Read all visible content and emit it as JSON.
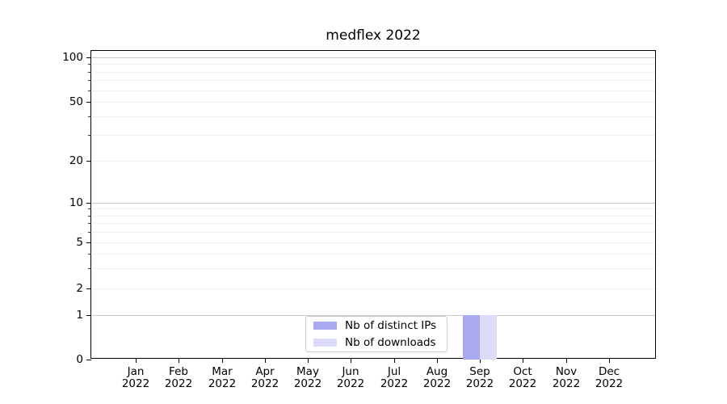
{
  "chart_data": {
    "type": "bar",
    "title": "medflex 2022",
    "x_ticks": [
      {
        "month": "Jan",
        "year": "2022"
      },
      {
        "month": "Feb",
        "year": "2022"
      },
      {
        "month": "Mar",
        "year": "2022"
      },
      {
        "month": "Apr",
        "year": "2022"
      },
      {
        "month": "May",
        "year": "2022"
      },
      {
        "month": "Jun",
        "year": "2022"
      },
      {
        "month": "Jul",
        "year": "2022"
      },
      {
        "month": "Aug",
        "year": "2022"
      },
      {
        "month": "Sep",
        "year": "2022"
      },
      {
        "month": "Oct",
        "year": "2022"
      },
      {
        "month": "Nov",
        "year": "2022"
      },
      {
        "month": "Dec",
        "year": "2022"
      }
    ],
    "series": [
      {
        "name": "Nb of distinct IPs",
        "color": "#a9a9f2",
        "values": [
          0,
          0,
          0,
          0,
          0,
          0,
          0,
          0,
          1,
          0,
          0,
          0
        ]
      },
      {
        "name": "Nb of downloads",
        "color": "#dcdcf8",
        "values": [
          0,
          0,
          0,
          0,
          0,
          0,
          0,
          0,
          1,
          0,
          0,
          0
        ]
      }
    ],
    "y_axis": {
      "scale": "symlog",
      "tick_values": [
        0,
        1,
        2,
        5,
        10,
        20,
        50,
        100
      ],
      "tick_labels": [
        "0",
        "1",
        "2",
        "5",
        "10",
        "20",
        "50",
        "100"
      ],
      "minor_tick_values": [
        3,
        4,
        6,
        7,
        8,
        9,
        30,
        40,
        60,
        70,
        80,
        90
      ],
      "range": [
        0,
        110
      ]
    },
    "grid": {
      "enabled": true,
      "major_color": "#c9c9c9",
      "minor_color": "#eeeeee"
    },
    "legend": {
      "position": "lower center",
      "items": [
        {
          "label": "Nb of distinct IPs",
          "color": "#a9a9f2"
        },
        {
          "label": "Nb of downloads",
          "color": "#dcdcf8"
        }
      ]
    }
  }
}
